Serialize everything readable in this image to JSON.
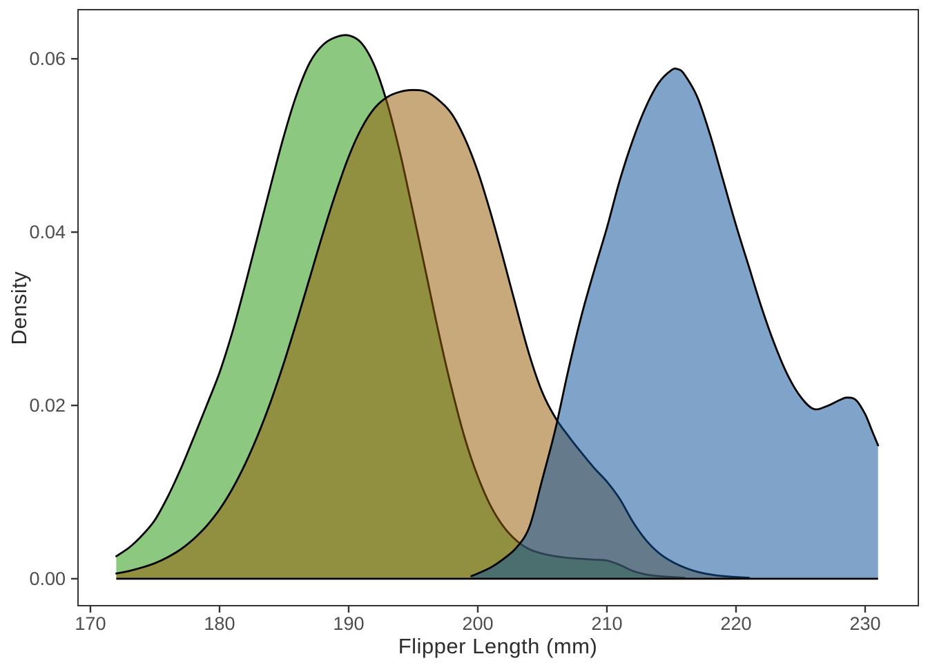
{
  "chart_data": {
    "type": "area",
    "subtype": "kde-density",
    "title": "",
    "xlabel": "Flipper Length (mm)",
    "ylabel": "Density",
    "xlim": [
      169.04,
      234.12
    ],
    "ylim": [
      -0.00311,
      0.06567
    ],
    "grid": false,
    "legend": null,
    "background": "#ffffff",
    "panel_border_color": "#333333",
    "tick_label_color": "#4d4d4d",
    "axis_title_color": "#2d2d2d",
    "x_ticks": [
      {
        "v": 170,
        "label": "170"
      },
      {
        "v": 180,
        "label": "180"
      },
      {
        "v": 190,
        "label": "190"
      },
      {
        "v": 200,
        "label": "200"
      },
      {
        "v": 210,
        "label": "210"
      },
      {
        "v": 220,
        "label": "220"
      },
      {
        "v": 230,
        "label": "230"
      }
    ],
    "y_ticks": [
      {
        "v": 0.0,
        "label": "0.00"
      },
      {
        "v": 0.02,
        "label": "0.02"
      },
      {
        "v": 0.04,
        "label": "0.04"
      },
      {
        "v": 0.06,
        "label": "0.06"
      }
    ],
    "series": [
      {
        "name": "green",
        "fill": "#289711",
        "fill_opacity": 0.53,
        "stroke": "#000000",
        "peak": {
          "x": 190,
          "density": 0.0627
        },
        "points": [
          [
            172,
            0.0026
          ],
          [
            173,
            0.0036
          ],
          [
            174,
            0.005
          ],
          [
            175,
            0.0068
          ],
          [
            176,
            0.0095
          ],
          [
            177,
            0.0127
          ],
          [
            178,
            0.0163
          ],
          [
            179,
            0.02
          ],
          [
            180,
            0.0238
          ],
          [
            181,
            0.0285
          ],
          [
            182,
            0.034
          ],
          [
            183,
            0.0398
          ],
          [
            184,
            0.0456
          ],
          [
            185,
            0.0512
          ],
          [
            186,
            0.056
          ],
          [
            187,
            0.0596
          ],
          [
            188,
            0.0616
          ],
          [
            189,
            0.0625
          ],
          [
            190,
            0.0627
          ],
          [
            191,
            0.0618
          ],
          [
            192,
            0.0592
          ],
          [
            193,
            0.0548
          ],
          [
            194,
            0.049
          ],
          [
            195,
            0.0422
          ],
          [
            196,
            0.0352
          ],
          [
            197,
            0.0282
          ],
          [
            198,
            0.0218
          ],
          [
            199,
            0.0162
          ],
          [
            200,
            0.0118
          ],
          [
            201,
            0.0084
          ],
          [
            202,
            0.006
          ],
          [
            203,
            0.0044
          ],
          [
            204,
            0.0034
          ],
          [
            205,
            0.0029
          ],
          [
            206,
            0.0026
          ],
          [
            207,
            0.0024
          ],
          [
            208,
            0.0023
          ],
          [
            209,
            0.0022
          ],
          [
            210,
            0.0021
          ],
          [
            211,
            0.0016
          ],
          [
            212,
            0.0009
          ],
          [
            213,
            0.0005
          ],
          [
            214,
            0.0003
          ],
          [
            215,
            0.0002
          ],
          [
            216,
            0.0001
          ]
        ]
      },
      {
        "name": "tan",
        "fill": "#955D08",
        "fill_opacity": 0.53,
        "stroke": "#000000",
        "peak": {
          "x": 195,
          "density": 0.0564
        },
        "points": [
          [
            172,
            0.0006
          ],
          [
            173,
            0.0009
          ],
          [
            174,
            0.0013
          ],
          [
            175,
            0.0018
          ],
          [
            176,
            0.0025
          ],
          [
            177,
            0.0034
          ],
          [
            178,
            0.0046
          ],
          [
            179,
            0.0061
          ],
          [
            180,
            0.008
          ],
          [
            181,
            0.0104
          ],
          [
            182,
            0.0133
          ],
          [
            183,
            0.0167
          ],
          [
            184,
            0.0206
          ],
          [
            185,
            0.025
          ],
          [
            186,
            0.0298
          ],
          [
            187,
            0.0348
          ],
          [
            188,
            0.0398
          ],
          [
            189,
            0.0445
          ],
          [
            190,
            0.0487
          ],
          [
            191,
            0.052
          ],
          [
            192,
            0.0543
          ],
          [
            193,
            0.0556
          ],
          [
            194,
            0.0562
          ],
          [
            195,
            0.0564
          ],
          [
            196,
            0.0562
          ],
          [
            197,
            0.0552
          ],
          [
            198,
            0.0536
          ],
          [
            199,
            0.0508
          ],
          [
            200,
            0.047
          ],
          [
            201,
            0.0422
          ],
          [
            202,
            0.0368
          ],
          [
            203,
            0.0312
          ],
          [
            204,
            0.0258
          ],
          [
            205,
            0.0215
          ],
          [
            206,
            0.0186
          ],
          [
            207,
            0.0165
          ],
          [
            208,
            0.0146
          ],
          [
            209,
            0.0128
          ],
          [
            210,
            0.0112
          ],
          [
            211,
            0.0092
          ],
          [
            212,
            0.0066
          ],
          [
            213,
            0.0045
          ],
          [
            214,
            0.003
          ],
          [
            215,
            0.002
          ],
          [
            216,
            0.0013
          ],
          [
            217,
            0.0008
          ],
          [
            218,
            0.0005
          ],
          [
            219,
            0.0003
          ],
          [
            220,
            0.0002
          ],
          [
            221,
            0.0001
          ]
        ]
      },
      {
        "name": "blue",
        "fill": "#0D5199",
        "fill_opacity": 0.53,
        "stroke": "#000000",
        "peak": {
          "x": 215.5,
          "density": 0.0588
        },
        "points": [
          [
            199.5,
            0.0003
          ],
          [
            200,
            0.0006
          ],
          [
            201,
            0.0013
          ],
          [
            202,
            0.0023
          ],
          [
            203,
            0.0036
          ],
          [
            204,
            0.006
          ],
          [
            205,
            0.0115
          ],
          [
            206,
            0.0172
          ],
          [
            207,
            0.024
          ],
          [
            208,
            0.0302
          ],
          [
            209,
            0.0355
          ],
          [
            210,
            0.0405
          ],
          [
            211,
            0.046
          ],
          [
            212,
            0.0506
          ],
          [
            213,
            0.0544
          ],
          [
            214,
            0.0572
          ],
          [
            215,
            0.0587
          ],
          [
            215.5,
            0.0588
          ],
          [
            216,
            0.0582
          ],
          [
            217,
            0.0556
          ],
          [
            218,
            0.0512
          ],
          [
            219,
            0.046
          ],
          [
            220,
            0.0408
          ],
          [
            221,
            0.036
          ],
          [
            222,
            0.0312
          ],
          [
            223,
            0.027
          ],
          [
            224,
            0.0235
          ],
          [
            225,
            0.021
          ],
          [
            226,
            0.0196
          ],
          [
            227,
            0.0199
          ],
          [
            228,
            0.0206
          ],
          [
            228.6,
            0.0209
          ],
          [
            229.3,
            0.0206
          ],
          [
            230,
            0.019
          ],
          [
            230.5,
            0.0172
          ],
          [
            231,
            0.0154
          ]
        ]
      }
    ],
    "baseline": {
      "y": 0,
      "x_start": 172,
      "x_end": 231,
      "color": "#000000"
    }
  }
}
